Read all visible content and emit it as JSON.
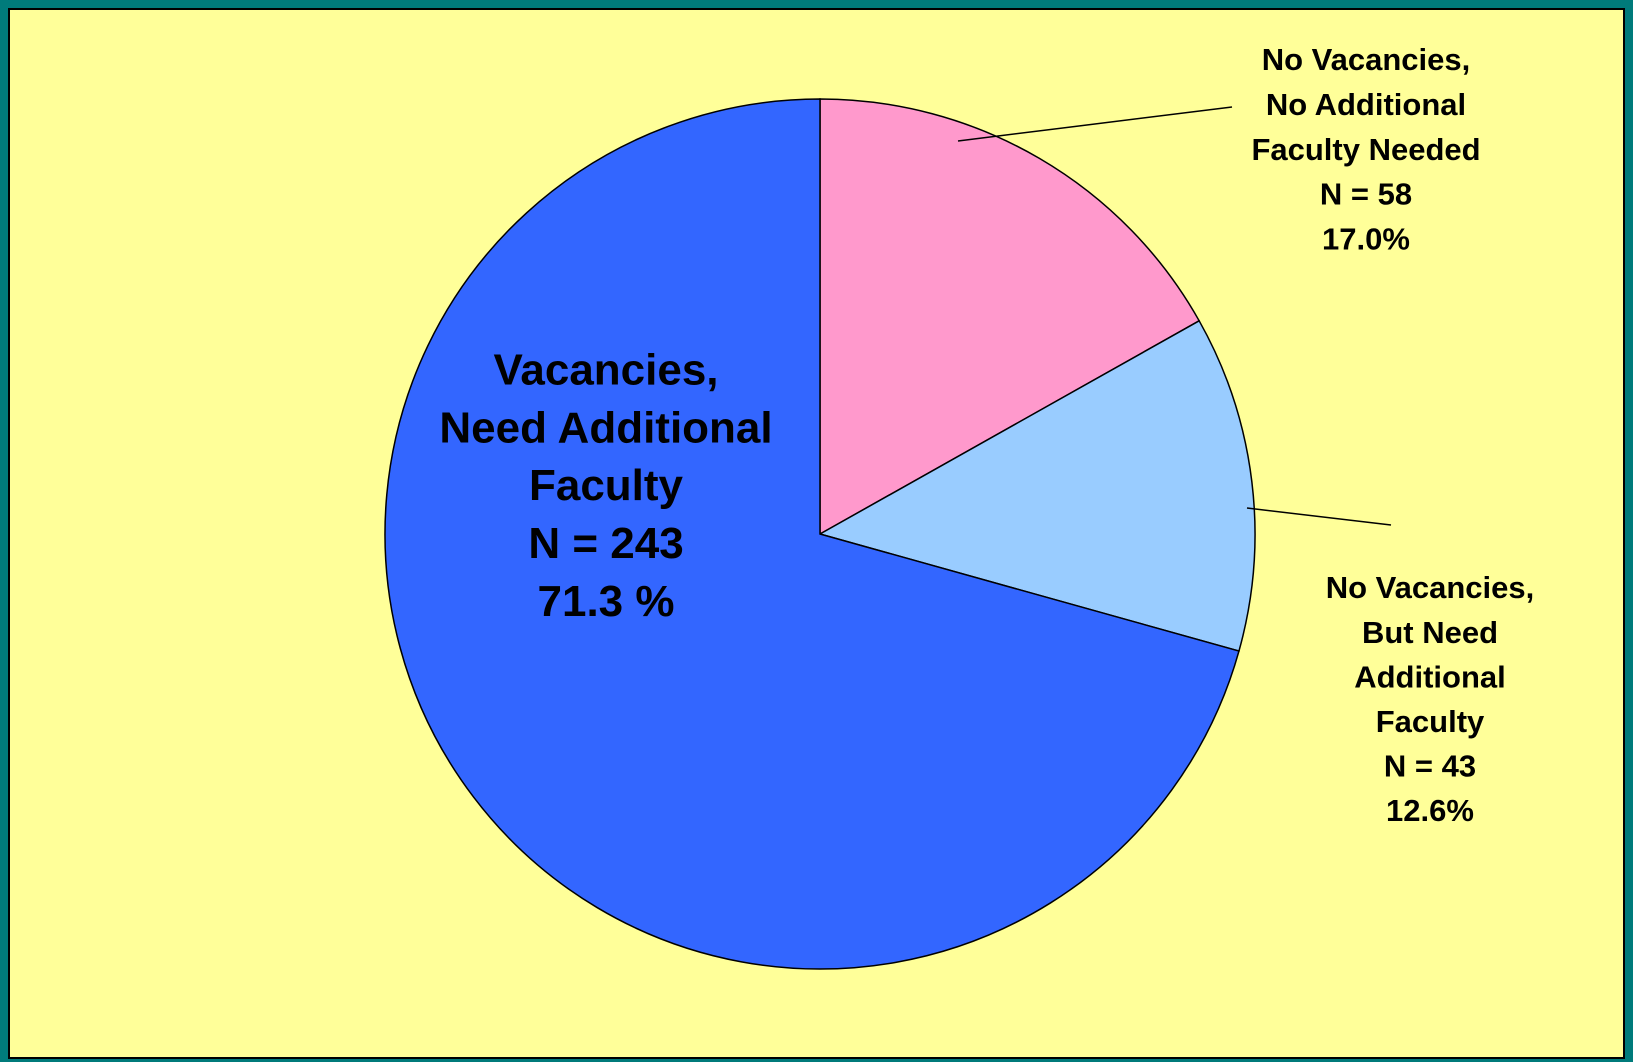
{
  "chart_data": {
    "type": "pie",
    "categories": [
      [
        "No Vacancies,",
        "No Additional",
        "Faculty Needed"
      ],
      [
        "No Vacancies,",
        "But Need",
        "Additional",
        "Faculty"
      ],
      [
        "Vacancies,",
        "Need Additional",
        "Faculty"
      ]
    ],
    "count_labels": [
      "N = 58",
      "N = 43",
      "N = 243"
    ],
    "values": [
      17.0,
      12.6,
      71.3
    ],
    "value_labels": [
      "17.0%",
      "12.6%",
      "71.3 %"
    ],
    "colors": [
      "#ff99cc",
      "#99ccff",
      "#3366ff"
    ]
  }
}
